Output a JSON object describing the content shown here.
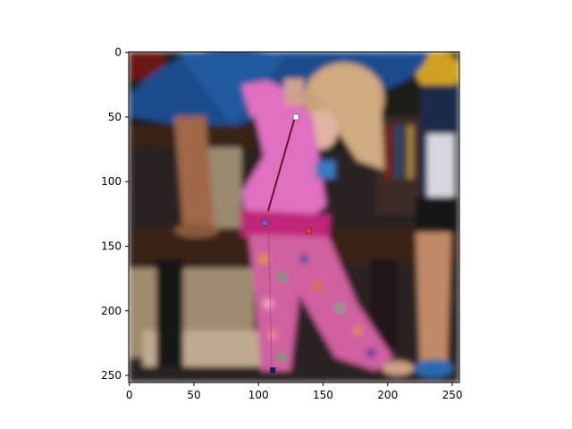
{
  "figure": {
    "image_description_icon": "blurred-photo-girl-pink-outfit-icon",
    "x_ticks": [
      "0",
      "50",
      "100",
      "150",
      "200",
      "250"
    ],
    "y_ticks": [
      "0",
      "50",
      "100",
      "150",
      "200",
      "250"
    ],
    "x_tick_values": [
      0,
      50,
      100,
      150,
      200,
      250
    ],
    "y_tick_values": [
      0,
      50,
      100,
      150,
      200,
      250
    ],
    "extent": [
      0,
      256,
      256,
      0
    ],
    "keypoints": [
      {
        "x": 129,
        "y": 50,
        "color": "#ffffff"
      },
      {
        "x": 105,
        "y": 132,
        "color": "#7a63c8"
      },
      {
        "x": 139,
        "y": 138,
        "color": "#ff3030"
      },
      {
        "x": 111,
        "y": 246,
        "color": "#1a1a60"
      }
    ],
    "skeleton_color": "#6a1030"
  }
}
